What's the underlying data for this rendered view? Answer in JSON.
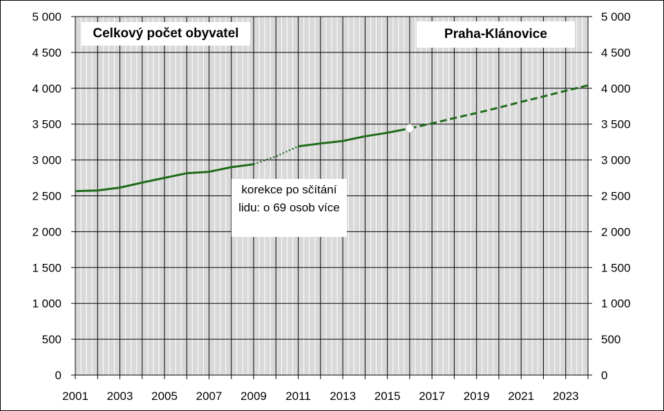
{
  "chart_data": {
    "type": "line",
    "title": "Celkový počet obyvatel",
    "location": "Praha-Klánovice",
    "annotation": "korekce po sčítání lidu: o 69 osob více",
    "x_ticks": [
      "2001",
      "2003",
      "2005",
      "2007",
      "2009",
      "2011",
      "2013",
      "2015",
      "2017",
      "2019",
      "2021",
      "2023"
    ],
    "y_ticks": [
      "0",
      "500",
      "1 000",
      "1 500",
      "2 000",
      "2 500",
      "3 000",
      "3 500",
      "4 000",
      "4 500",
      "5 000"
    ],
    "ylim": [
      0,
      5000
    ],
    "xlim": [
      2001,
      2024
    ],
    "grid": true,
    "y_axis_both_sides": true,
    "series": [
      {
        "style": "solid",
        "x": [
          2001,
          2002,
          2003,
          2004,
          2005,
          2006,
          2007,
          2008,
          2009
        ],
        "values": [
          2565,
          2575,
          2615,
          2685,
          2750,
          2815,
          2835,
          2900,
          2940
        ]
      },
      {
        "style": "dotted",
        "x": [
          2009,
          2010,
          2011
        ],
        "values": [
          2940,
          3050,
          3190
        ]
      },
      {
        "style": "solid",
        "x": [
          2011,
          2012,
          2013,
          2014,
          2015,
          2016
        ],
        "values": [
          3190,
          3230,
          3265,
          3330,
          3380,
          3440
        ]
      },
      {
        "style": "dashed",
        "x": [
          2016,
          2017,
          2018,
          2019,
          2020,
          2021,
          2022,
          2023,
          2024
        ],
        "values": [
          3440,
          3510,
          3585,
          3655,
          3730,
          3810,
          3885,
          3965,
          4040
        ]
      }
    ],
    "colors": {
      "line": "#1e6b1a",
      "plot_bg": "#d9d9d9",
      "grid": "#000000",
      "marker": "#ffffff"
    }
  }
}
